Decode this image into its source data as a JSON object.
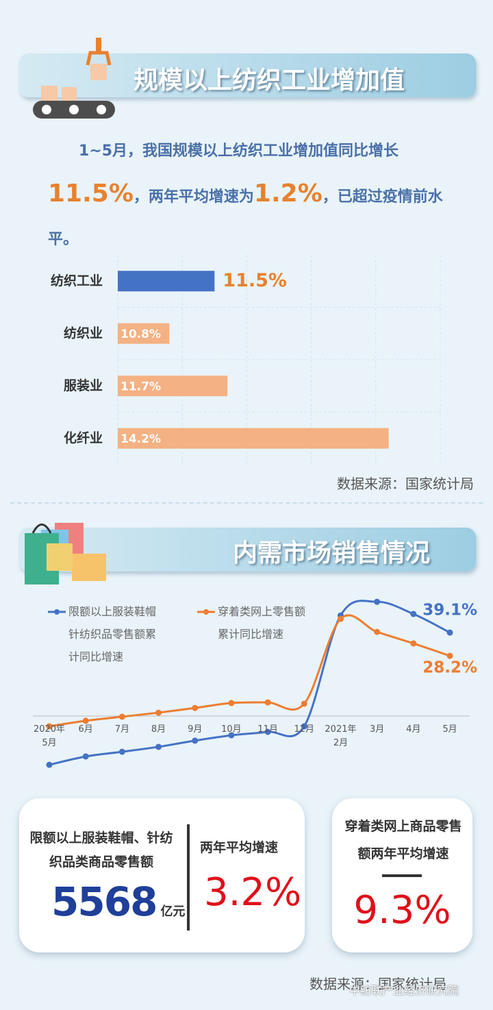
{
  "header1": {
    "title": "规模以上纺织工业增加值"
  },
  "paragraph": {
    "parts": [
      "1~5月，我国规模以上纺织工业增加值同比增长",
      "11.5%",
      "，两年平均增速为",
      "1.2%",
      "，已超过疫情前水平。"
    ]
  },
  "source1": "数据来源：国家统计局",
  "header2": {
    "title": "内需市场销售情况"
  },
  "cards": [
    {
      "label": "限额以上服装鞋帽、针纺织品类商品零售额",
      "value": "5568",
      "unit": "亿元",
      "rate_label": "两年平均增速",
      "rate": "3.2%"
    },
    {
      "label": "穿着类网上商品零售额两年平均增速",
      "rate": "9.3%"
    }
  ],
  "source2": "数据来源：国家统计局",
  "watermark": "中纺联产业经济研究院",
  "chart_data": [
    {
      "type": "bar",
      "orientation": "horizontal",
      "categories": [
        "纺织工业",
        "纺织业",
        "服装业",
        "化纤业"
      ],
      "values": [
        11.5,
        10.8,
        11.7,
        14.2
      ],
      "value_labels": [
        "11.5%",
        "10.8%",
        "11.7%",
        "14.2%"
      ],
      "colors": [
        "#4472c4",
        "#f4b183",
        "#f4b183",
        "#f4b183"
      ],
      "xlim": [
        10,
        15
      ],
      "xticks": [
        10,
        11,
        12,
        13,
        14,
        15
      ],
      "grid": true
    },
    {
      "type": "line",
      "categories": [
        "2020年\n5月",
        "6月",
        "7月",
        "8月",
        "9月",
        "10月",
        "11月",
        "12月",
        "2021年\n2月",
        "3月",
        "4月",
        "5月"
      ],
      "series": [
        {
          "name": "限额以上服装鞋帽针纺织品零售额累计同比增速",
          "color": "#4472c4",
          "values": [
            -22.8,
            -18.9,
            -16.7,
            -14.4,
            -11.5,
            -9.0,
            -7.4,
            -4.8,
            47.1,
            53.5,
            47.8,
            39.1
          ],
          "value_labels": [
            null,
            null,
            null,
            null,
            null,
            null,
            null,
            null,
            null,
            null,
            null,
            "39.1%"
          ]
        },
        {
          "name": "穿着类网上零售额累计同比增速",
          "color": "#ed7d31",
          "values": [
            -4.8,
            -2.2,
            -0.3,
            1.6,
            3.8,
            6.1,
            6.4,
            5.8,
            45.5,
            39.4,
            34.0,
            28.2
          ],
          "value_labels": [
            null,
            null,
            null,
            null,
            null,
            null,
            null,
            null,
            null,
            null,
            null,
            "28.2%"
          ]
        }
      ],
      "ylim": [
        -25,
        60
      ]
    }
  ]
}
